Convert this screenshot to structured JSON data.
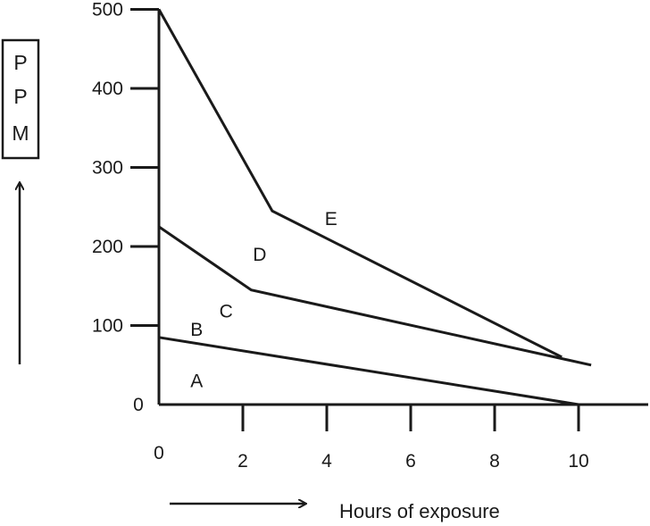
{
  "chart_data": {
    "type": "line",
    "xlabel": "Hours of exposure",
    "ylabel": "PPM",
    "ylabel_letters": [
      "P",
      "P",
      "M"
    ],
    "x_ticks": [
      {
        "value": 0,
        "label": "0"
      },
      {
        "value": 2,
        "label": "2"
      },
      {
        "value": 4,
        "label": "4"
      },
      {
        "value": 6,
        "label": "6"
      },
      {
        "value": 8,
        "label": "8"
      },
      {
        "value": 10,
        "label": "10"
      }
    ],
    "y_ticks": [
      {
        "value": 0,
        "label": "0"
      },
      {
        "value": 100,
        "label": "100"
      },
      {
        "value": 200,
        "label": "200"
      },
      {
        "value": 300,
        "label": "300"
      },
      {
        "value": 400,
        "label": "400"
      },
      {
        "value": 500,
        "label": "500"
      }
    ],
    "xlim": [
      0,
      11.5
    ],
    "ylim": [
      0,
      500
    ],
    "grid": false,
    "series": [
      {
        "points": [
          [
            0,
            85
          ],
          [
            10,
            0
          ]
        ]
      },
      {
        "points": [
          [
            0,
            225
          ],
          [
            2.2,
            145
          ],
          [
            10.3,
            50
          ]
        ]
      },
      {
        "points": [
          [
            0,
            500
          ],
          [
            2.7,
            245
          ],
          [
            9.6,
            60
          ]
        ]
      }
    ],
    "region_labels": [
      {
        "text": "A",
        "x": 0.9,
        "y": 30
      },
      {
        "text": "B",
        "x": 0.9,
        "y": 95
      },
      {
        "text": "C",
        "x": 1.6,
        "y": 118
      },
      {
        "text": "D",
        "x": 2.4,
        "y": 190
      },
      {
        "text": "E",
        "x": 4.1,
        "y": 235
      }
    ]
  }
}
